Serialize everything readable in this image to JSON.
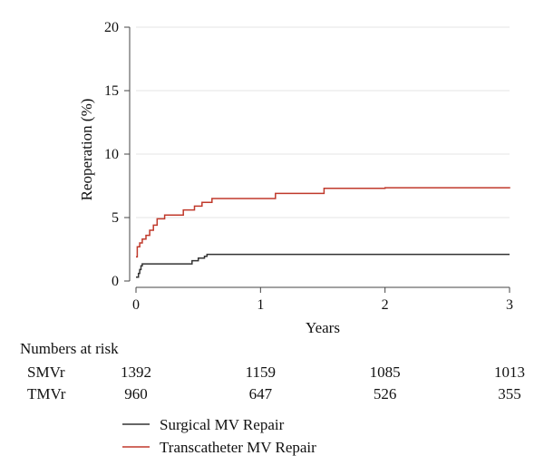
{
  "chart_data": {
    "type": "line",
    "xlabel": "Years",
    "ylabel": "Reoperation (%)",
    "xlim": [
      0,
      3
    ],
    "ylim": [
      0,
      20
    ],
    "x_ticks": [
      "0",
      "1",
      "2",
      "3"
    ],
    "y_ticks": [
      "0",
      "5",
      "10",
      "15",
      "20"
    ],
    "grid": "horizontal",
    "legend_position": "bottom",
    "series": [
      {
        "name": "Surgical MV Repair",
        "color": "#333333",
        "step": true,
        "points": [
          [
            0.0,
            0.3
          ],
          [
            0.02,
            0.6
          ],
          [
            0.03,
            0.9
          ],
          [
            0.04,
            1.2
          ],
          [
            0.05,
            1.35
          ],
          [
            0.43,
            1.35
          ],
          [
            0.45,
            1.6
          ],
          [
            0.5,
            1.8
          ],
          [
            0.55,
            1.95
          ],
          [
            0.57,
            2.1
          ],
          [
            3.0,
            2.1
          ]
        ]
      },
      {
        "name": "Transcatheter MV Repair",
        "color": "#c0392b",
        "step": true,
        "points": [
          [
            0.0,
            1.9
          ],
          [
            0.01,
            2.7
          ],
          [
            0.03,
            3.0
          ],
          [
            0.05,
            3.3
          ],
          [
            0.08,
            3.6
          ],
          [
            0.11,
            4.0
          ],
          [
            0.14,
            4.4
          ],
          [
            0.17,
            4.9
          ],
          [
            0.23,
            5.2
          ],
          [
            0.38,
            5.6
          ],
          [
            0.47,
            5.9
          ],
          [
            0.53,
            6.2
          ],
          [
            0.61,
            6.5
          ],
          [
            1.12,
            6.9
          ],
          [
            1.51,
            7.3
          ],
          [
            2.0,
            7.35
          ],
          [
            3.0,
            7.4
          ]
        ]
      }
    ]
  },
  "risk_table": {
    "title": "Numbers at risk",
    "rows": [
      {
        "label": "SMVr",
        "values": [
          "1392",
          "1159",
          "1085",
          "1013"
        ]
      },
      {
        "label": "TMVr",
        "values": [
          "960",
          "647",
          "526",
          "355"
        ]
      }
    ]
  }
}
